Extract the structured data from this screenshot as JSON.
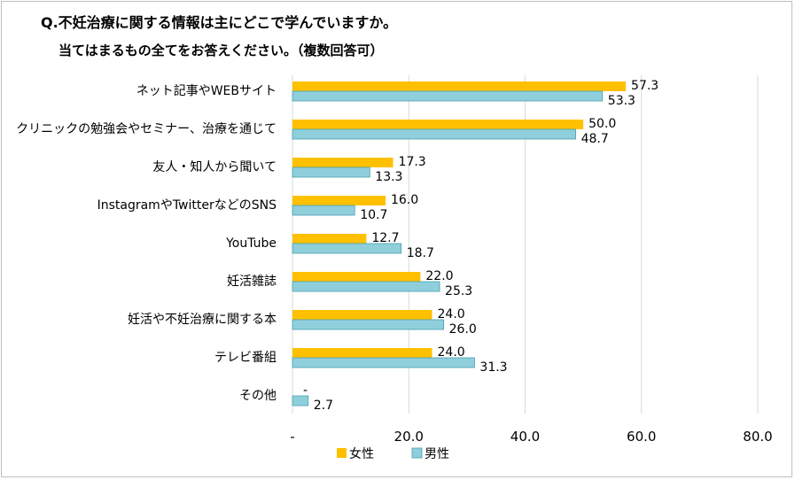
{
  "chart_data": {
    "type": "bar",
    "orientation": "horizontal",
    "title": "Q.不妊治療に関する情報は主にどこで学んでいますか。",
    "subtitle": "当てはまるもの全てをお答えください。（複数回答可）",
    "categories": [
      "ネット記事やWEBサイト",
      "クリニックの勉強会やセミナー、治療を通じて",
      "友人・知人から聞いて",
      "InstagramやTwitterなどのSNS",
      "YouTube",
      "妊活雑誌",
      "妊活や不妊治療に関する本",
      "テレビ番組",
      "その他"
    ],
    "series": [
      {
        "name": "女性",
        "color": "#FFC000",
        "values": [
          57.3,
          50.0,
          17.3,
          16.0,
          12.7,
          22.0,
          24.0,
          24.0,
          0
        ],
        "labels": [
          "57.3",
          "50.0",
          "17.3",
          "16.0",
          "12.7",
          "22.0",
          "24.0",
          "24.0",
          "-"
        ]
      },
      {
        "name": "男性",
        "color": "#8FCFDB",
        "values": [
          53.3,
          48.7,
          13.3,
          10.7,
          18.7,
          25.3,
          26.0,
          31.3,
          2.7
        ],
        "labels": [
          "53.3",
          "48.7",
          "13.3",
          "10.7",
          "18.7",
          "25.3",
          "26.0",
          "31.3",
          "2.7"
        ]
      }
    ],
    "xlim": [
      0,
      80
    ],
    "xticks": [
      "-",
      "20.0",
      "40.0",
      "60.0",
      "80.0"
    ],
    "xtick_values": [
      0,
      20,
      40,
      60,
      80
    ],
    "grid": true,
    "legend": "bottom"
  }
}
